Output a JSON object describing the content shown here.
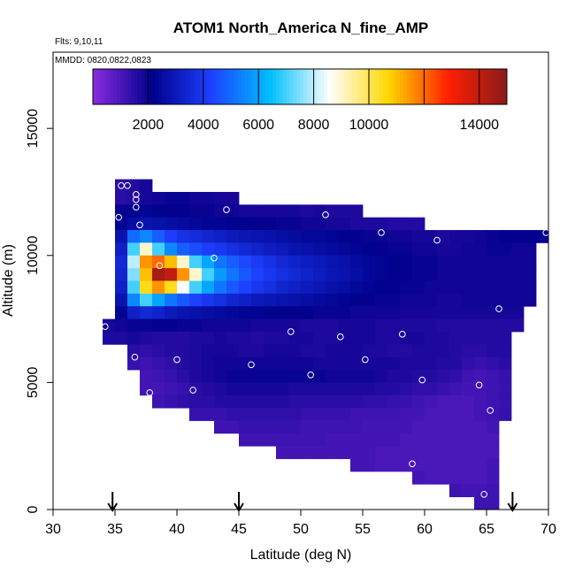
{
  "chart_data": {
    "type": "heatmap",
    "title": "ATOM1 North_America N_fine_AMP",
    "notes": {
      "flights": "Flts: 9,10,11",
      "dates": "MMDD: 0820,0822,0823"
    },
    "xlabel": "Latitude (deg N)",
    "ylabel": "Altitude (m)",
    "xlim": [
      30,
      70
    ],
    "ylim": [
      0,
      18000
    ],
    "x_ticks": [
      30,
      35,
      40,
      45,
      50,
      55,
      60,
      65,
      70
    ],
    "y_ticks": [
      0,
      5000,
      10000,
      15000
    ],
    "colorbar": {
      "range": [
        0,
        15000
      ],
      "tick_values": [
        2000,
        4000,
        6000,
        8000,
        10000,
        14000
      ],
      "tick_labels": [
        "2000",
        "4000",
        "6000",
        "8000",
        "10000",
        "14000"
      ],
      "segment_boundaries": [
        0,
        2000,
        4000,
        6000,
        8000,
        10000,
        12000,
        14000,
        15000
      ],
      "colors": [
        "#8a2be2",
        "#00008b",
        "#1e40ff",
        "#00bfff",
        "#ffffff",
        "#ffd700",
        "#ff2000",
        "#8b1a1a"
      ]
    },
    "cell_width_deg": 1,
    "cell_height_m": 500,
    "rows": [
      {
        "alt": 12750,
        "start_lat": 35,
        "values": [
          1500,
          1600,
          1800
        ]
      },
      {
        "alt": 12250,
        "start_lat": 35,
        "values": [
          1500,
          1600,
          1800,
          1900,
          2000,
          2000,
          1900,
          1900,
          1800,
          1800
        ]
      },
      {
        "alt": 11750,
        "start_lat": 35,
        "values": [
          2000,
          2200,
          2300,
          2200,
          2100,
          2100,
          2000,
          2000,
          1900,
          1900,
          1800,
          1800,
          1800,
          1800,
          1800,
          1700,
          1800,
          1700,
          1700,
          1700
        ]
      },
      {
        "alt": 11250,
        "start_lat": 35,
        "values": [
          2300,
          2600,
          2800,
          2700,
          2600,
          2500,
          2400,
          2300,
          2300,
          2200,
          2200,
          2100,
          2100,
          2000,
          2000,
          1900,
          1900,
          1800,
          1800,
          1700,
          1700,
          1700,
          1600,
          1600,
          1600
        ]
      },
      {
        "alt": 10750,
        "start_lat": 35,
        "values": [
          2800,
          5000,
          5500,
          4800,
          4200,
          3800,
          3600,
          3400,
          3200,
          3000,
          2900,
          2800,
          2700,
          2600,
          2500,
          2400,
          2400,
          2300,
          2200,
          2100,
          2000,
          2000,
          1900,
          1900,
          1800,
          1800,
          1700,
          1800,
          1800,
          1900,
          2000,
          2100,
          2100,
          2100,
          2100
        ]
      },
      {
        "alt": 10250,
        "start_lat": 35,
        "values": [
          3200,
          7000,
          9000,
          7000,
          5500,
          4800,
          4500,
          4200,
          4000,
          3700,
          3500,
          3300,
          3100,
          3000,
          2800,
          2700,
          2600,
          2500,
          2400,
          2300,
          2200,
          2100,
          2000,
          2000,
          1900,
          1900,
          1800,
          1800,
          1900,
          1900,
          2000,
          2000,
          1900,
          1900
        ]
      },
      {
        "alt": 9750,
        "start_lat": 35,
        "values": [
          3500,
          8000,
          11500,
          12000,
          11000,
          9000,
          7000,
          6000,
          5200,
          4800,
          4400,
          4100,
          3800,
          3500,
          3300,
          3100,
          3000,
          2800,
          2700,
          2500,
          2400,
          2300,
          2200,
          2100,
          2000,
          2000,
          1900,
          1900,
          1900,
          1900,
          1900,
          1900,
          1900,
          1900
        ]
      },
      {
        "alt": 9250,
        "start_lat": 35,
        "values": [
          3400,
          7500,
          11000,
          14500,
          14000,
          11500,
          9000,
          7000,
          5800,
          5200,
          4700,
          4300,
          4000,
          3700,
          3500,
          3300,
          3100,
          2900,
          2800,
          2600,
          2400,
          2300,
          2200,
          2100,
          2000,
          2000,
          1900,
          1900,
          1900,
          1900,
          1900,
          1900,
          1900,
          1900
        ]
      },
      {
        "alt": 8750,
        "start_lat": 35,
        "values": [
          3200,
          7000,
          10500,
          11500,
          10500,
          8500,
          7000,
          6000,
          5200,
          4700,
          4300,
          4000,
          3700,
          3400,
          3200,
          3000,
          2900,
          2700,
          2600,
          2400,
          2300,
          2200,
          2100,
          2000,
          2000,
          1900,
          1900,
          1900,
          1900,
          1900,
          1900,
          1900,
          1900,
          1900
        ]
      },
      {
        "alt": 8250,
        "start_lat": 35,
        "values": [
          2800,
          5500,
          7000,
          6000,
          5200,
          4700,
          4300,
          4000,
          3700,
          3400,
          3200,
          3000,
          2900,
          2800,
          2700,
          2600,
          2500,
          2400,
          2300,
          2200,
          2100,
          2000,
          2000,
          1900,
          1900,
          1900,
          1800,
          1800,
          1900,
          1900,
          1900,
          1900,
          1900,
          1900
        ]
      },
      {
        "alt": 7750,
        "start_lat": 35,
        "values": [
          2300,
          3200,
          3500,
          3300,
          3000,
          2800,
          2700,
          2600,
          2500,
          2400,
          2300,
          2300,
          2200,
          2200,
          2100,
          2100,
          2000,
          2000,
          2000,
          1900,
          1900,
          1900,
          1900,
          1800,
          1800,
          1800,
          1800,
          1800,
          1800,
          1800,
          1800,
          1800,
          1800
        ]
      },
      {
        "alt": 7250,
        "start_lat": 34,
        "values": [
          1800,
          1900,
          2000,
          2000,
          2100,
          2100,
          2000,
          2000,
          1900,
          1900,
          1900,
          1900,
          1800,
          1800,
          1800,
          1800,
          1700,
          1700,
          1700,
          1800,
          1800,
          1800,
          1700,
          1700,
          1700,
          1700,
          1700,
          1600,
          1600,
          1600,
          1600,
          1600,
          1600,
          1600
        ]
      },
      {
        "alt": 6750,
        "start_lat": 34,
        "values": [
          1700,
          1700,
          1800,
          1700,
          1600,
          1600,
          1600,
          1700,
          1700,
          1800,
          1700,
          1700,
          1600,
          1700,
          1700,
          1800,
          1800,
          1700,
          1700,
          1800,
          1800,
          1800,
          1700,
          1700,
          1800,
          1800,
          1700,
          1700,
          1600,
          1600,
          1600,
          1600,
          1600
        ]
      },
      {
        "alt": 6250,
        "start_lat": 36,
        "values": [
          1500,
          1400,
          1500,
          1600,
          1600,
          1700,
          1800,
          1800,
          1800,
          1700,
          1700,
          1800,
          1800,
          1800,
          1700,
          1700,
          1800,
          1800,
          1800,
          1700,
          1700,
          1600,
          1600,
          1700,
          1700,
          1700,
          1600,
          1500,
          1500,
          1600,
          1600
        ]
      },
      {
        "alt": 5750,
        "start_lat": 36,
        "values": [
          1300,
          1200,
          1300,
          1400,
          1600,
          1700,
          1800,
          1900,
          1900,
          1900,
          1900,
          1900,
          1900,
          1900,
          1900,
          1800,
          1800,
          1800,
          1800,
          1800,
          1800,
          1800,
          1700,
          1700,
          1700,
          1600,
          1600,
          1400,
          1300,
          1400,
          1500
        ]
      },
      {
        "alt": 5250,
        "start_lat": 37,
        "values": [
          1100,
          1200,
          1300,
          1500,
          1700,
          1800,
          1900,
          2000,
          2000,
          2000,
          2000,
          2000,
          2000,
          2000,
          2000,
          1900,
          1900,
          1900,
          1900,
          1800,
          1700,
          1700,
          1600,
          1600,
          1500,
          1400,
          1200,
          1100,
          1200,
          1300
        ]
      },
      {
        "alt": 4750,
        "start_lat": 37,
        "values": [
          1100,
          1100,
          1200,
          1300,
          1500,
          1600,
          1700,
          1800,
          1800,
          1800,
          1800,
          1800,
          1700,
          1700,
          1700,
          1700,
          1700,
          1700,
          1700,
          1600,
          1600,
          1500,
          1400,
          1400,
          1300,
          1200,
          1100,
          1100,
          1200,
          1300
        ]
      },
      {
        "alt": 4250,
        "start_lat": 38,
        "values": [
          1200,
          1300,
          1400,
          1500,
          1500,
          1600,
          1600,
          1600,
          1600,
          1600,
          1600,
          1500,
          1500,
          1500,
          1500,
          1500,
          1500,
          1400,
          1400,
          1300,
          1300,
          1200,
          1100,
          1000,
          1000,
          1000,
          1100,
          1200,
          1300
        ]
      },
      {
        "alt": 3750,
        "start_lat": 41,
        "values": [
          1300,
          1300,
          1300,
          1400,
          1400,
          1400,
          1400,
          1400,
          1400,
          1300,
          1300,
          1300,
          1300,
          1200,
          1200,
          1200,
          1200,
          1100,
          1100,
          1000,
          1000,
          1000,
          1000,
          1100,
          1200,
          1300
        ]
      },
      {
        "alt": 3250,
        "start_lat": 43,
        "values": [
          1200,
          1200,
          1300,
          1300,
          1300,
          1300,
          1300,
          1200,
          1200,
          1200,
          1200,
          1200,
          1100,
          1100,
          1100,
          1100,
          1000,
          1000,
          1000,
          1000,
          1000,
          1000,
          1100
        ]
      },
      {
        "alt": 2750,
        "start_lat": 45,
        "values": [
          1200,
          1200,
          1200,
          1200,
          1200,
          1200,
          1200,
          1100,
          1100,
          1100,
          1100,
          1100,
          1100,
          1000,
          1000,
          1000,
          1000,
          1000,
          1000,
          1000,
          1000
        ]
      },
      {
        "alt": 2250,
        "start_lat": 48,
        "values": [
          1100,
          1100,
          1100,
          1100,
          1100,
          1100,
          1100,
          1100,
          1000,
          1000,
          1000,
          1000,
          1000,
          1000,
          1000,
          1000,
          1000,
          1000
        ]
      },
      {
        "alt": 1750,
        "start_lat": 54,
        "values": [
          1100,
          1100,
          1000,
          1000,
          1000,
          1000,
          1000,
          1000,
          1000,
          1000,
          1000,
          1100
        ]
      },
      {
        "alt": 1250,
        "start_lat": 59,
        "values": [
          1100,
          1000,
          1000,
          1000,
          1000,
          1000,
          1100
        ]
      },
      {
        "alt": 750,
        "start_lat": 62,
        "values": [
          1200,
          1100,
          1100,
          1200
        ]
      },
      {
        "alt": 250,
        "start_lat": 64,
        "values": [
          1200,
          1200
        ]
      }
    ],
    "sample_points": [
      [
        35.5,
        12750
      ],
      [
        36.0,
        12750
      ],
      [
        36.7,
        12400
      ],
      [
        36.7,
        12200
      ],
      [
        36.7,
        11900
      ],
      [
        35.3,
        11500
      ],
      [
        37.0,
        11200
      ],
      [
        44.0,
        11800
      ],
      [
        52.0,
        11600
      ],
      [
        56.5,
        10900
      ],
      [
        61.0,
        10600
      ],
      [
        69.8,
        10900
      ],
      [
        38.6,
        9600
      ],
      [
        43.0,
        9900
      ],
      [
        66.0,
        7900
      ],
      [
        34.2,
        7200
      ],
      [
        49.2,
        7000
      ],
      [
        53.2,
        6800
      ],
      [
        58.2,
        6900
      ],
      [
        36.6,
        6000
      ],
      [
        40.0,
        5900
      ],
      [
        46.0,
        5700
      ],
      [
        55.2,
        5900
      ],
      [
        50.8,
        5300
      ],
      [
        59.8,
        5100
      ],
      [
        37.8,
        4600
      ],
      [
        41.3,
        4700
      ],
      [
        64.4,
        4900
      ],
      [
        65.3,
        3900
      ],
      [
        59.0,
        1800
      ],
      [
        64.8,
        600
      ]
    ],
    "flight_markers_lat": [
      34.8,
      45.0,
      67.1
    ]
  }
}
